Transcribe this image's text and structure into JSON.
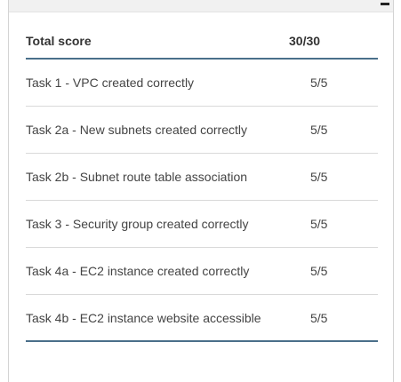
{
  "scroll_marker": "–",
  "table": {
    "header": {
      "label": "Total score",
      "score": "30/30"
    },
    "rows": [
      {
        "task": "Task 1 - VPC created correctly",
        "score": "5/5"
      },
      {
        "task": "Task 2a - New subnets created correctly",
        "score": "5/5"
      },
      {
        "task": "Task 2b - Subnet route table association",
        "score": "5/5"
      },
      {
        "task": "Task 3 - Security group created correctly",
        "score": "5/5"
      },
      {
        "task": "Task 4a - EC2 instance created correctly",
        "score": "5/5"
      },
      {
        "task": "Task 4b - EC2 instance website accessible",
        "score": "5/5"
      }
    ]
  },
  "colors": {
    "rule_accent": "#4a6f8a",
    "row_divider": "#d9d9d9",
    "text": "#444444"
  }
}
